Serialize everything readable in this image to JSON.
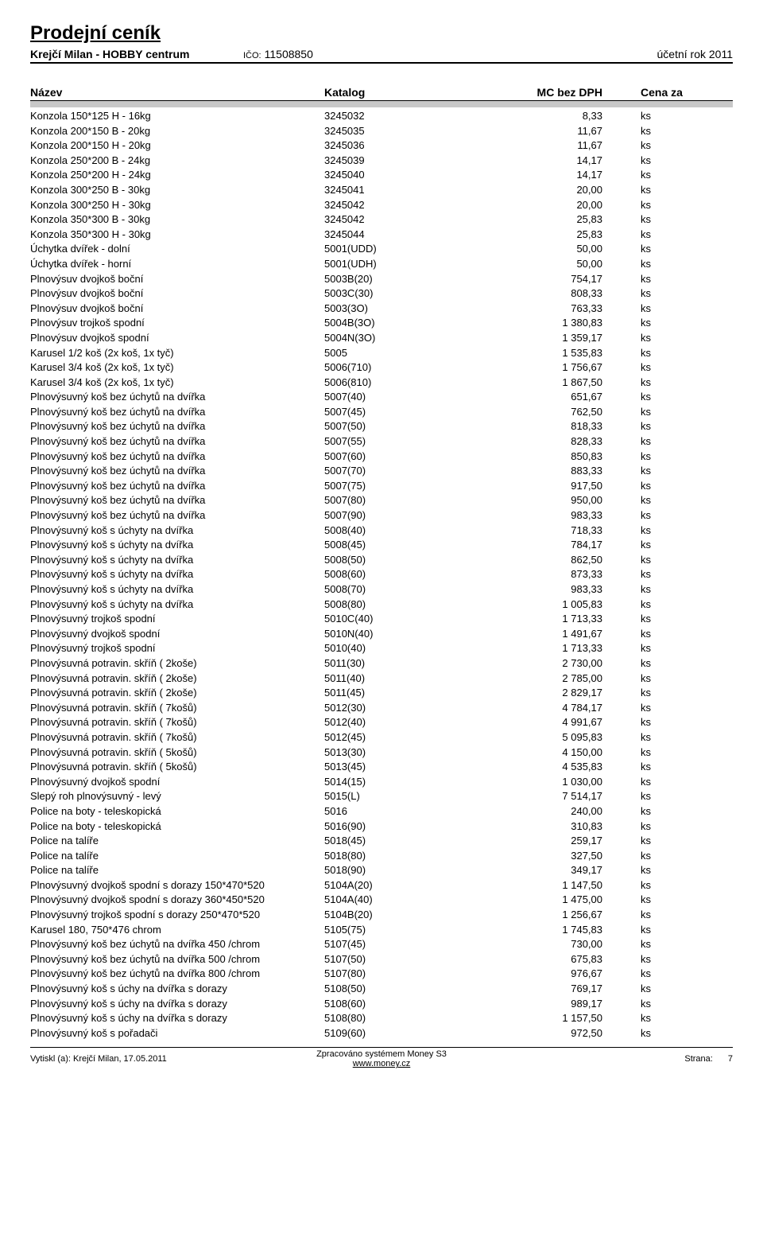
{
  "header": {
    "title": "Prodejní ceník",
    "company": "Krejčí Milan - HOBBY centrum",
    "ico_label": "IČO:",
    "ico": "11508850",
    "year_label": "účetní rok 2011"
  },
  "columns": {
    "c1": "Název",
    "c2": "Katalog",
    "c3": "MC bez DPH",
    "c4": "Cena za"
  },
  "rows": [
    {
      "n": "Konzola 150*125 H - 16kg",
      "k": "3245032",
      "p": "8,33",
      "u": "ks"
    },
    {
      "n": "Konzola 200*150 B - 20kg",
      "k": "3245035",
      "p": "11,67",
      "u": "ks"
    },
    {
      "n": "Konzola 200*150 H - 20kg",
      "k": "3245036",
      "p": "11,67",
      "u": "ks"
    },
    {
      "n": "Konzola 250*200 B - 24kg",
      "k": "3245039",
      "p": "14,17",
      "u": "ks"
    },
    {
      "n": "Konzola 250*200 H - 24kg",
      "k": "3245040",
      "p": "14,17",
      "u": "ks"
    },
    {
      "n": "Konzola 300*250 B - 30kg",
      "k": "3245041",
      "p": "20,00",
      "u": "ks"
    },
    {
      "n": "Konzola 300*250 H - 30kg",
      "k": "3245042",
      "p": "20,00",
      "u": "ks"
    },
    {
      "n": "Konzola 350*300 B - 30kg",
      "k": "3245042",
      "p": "25,83",
      "u": "ks"
    },
    {
      "n": "Konzola 350*300 H - 30kg",
      "k": "3245044",
      "p": "25,83",
      "u": "ks"
    },
    {
      "n": "Úchytka dvířek - dolní",
      "k": "5001(UDD)",
      "p": "50,00",
      "u": "ks"
    },
    {
      "n": "Úchytka dvířek - horní",
      "k": "5001(UDH)",
      "p": "50,00",
      "u": "ks"
    },
    {
      "n": "Plnovýsuv dvojkoš boční",
      "k": "5003B(20)",
      "p": "754,17",
      "u": "ks"
    },
    {
      "n": "Plnovýsuv dvojkoš boční",
      "k": "5003C(30)",
      "p": "808,33",
      "u": "ks"
    },
    {
      "n": "Plnovýsuv dvojkoš boční",
      "k": "5003(3O)",
      "p": "763,33",
      "u": "ks"
    },
    {
      "n": "Plnovýsuv trojkoš spodní",
      "k": "5004B(3O)",
      "p": "1 380,83",
      "u": "ks"
    },
    {
      "n": "Plnovýsuv dvojkoš spodní",
      "k": "5004N(3O)",
      "p": "1 359,17",
      "u": "ks"
    },
    {
      "n": "Karusel 1/2 koš (2x koš, 1x tyč)",
      "k": "5005",
      "p": "1 535,83",
      "u": "ks"
    },
    {
      "n": "Karusel 3/4 koš (2x koš, 1x tyč)",
      "k": "5006(710)",
      "p": "1 756,67",
      "u": "ks"
    },
    {
      "n": "Karusel 3/4 koš (2x koš, 1x tyč)",
      "k": "5006(810)",
      "p": "1 867,50",
      "u": "ks"
    },
    {
      "n": "Plnovýsuvný koš bez úchytů na dvířka",
      "k": "5007(40)",
      "p": "651,67",
      "u": "ks"
    },
    {
      "n": "Plnovýsuvný koš bez úchytů na dvířka",
      "k": "5007(45)",
      "p": "762,50",
      "u": "ks"
    },
    {
      "n": "Plnovýsuvný koš bez úchytů na dvířka",
      "k": "5007(50)",
      "p": "818,33",
      "u": "ks"
    },
    {
      "n": "Plnovýsuvný koš bez úchytů na dvířka",
      "k": "5007(55)",
      "p": "828,33",
      "u": "ks"
    },
    {
      "n": "Plnovýsuvný koš bez úchytů na dvířka",
      "k": "5007(60)",
      "p": "850,83",
      "u": "ks"
    },
    {
      "n": "Plnovýsuvný koš bez úchytů na dvířka",
      "k": "5007(70)",
      "p": "883,33",
      "u": "ks"
    },
    {
      "n": "Plnovýsuvný koš bez úchytů na dvířka",
      "k": "5007(75)",
      "p": "917,50",
      "u": "ks"
    },
    {
      "n": "Plnovýsuvný koš bez úchytů na dvířka",
      "k": "5007(80)",
      "p": "950,00",
      "u": "ks"
    },
    {
      "n": "Plnovýsuvný koš bez úchytů na dvířka",
      "k": "5007(90)",
      "p": "983,33",
      "u": "ks"
    },
    {
      "n": "Plnovýsuvný koš s úchyty na dvířka",
      "k": "5008(40)",
      "p": "718,33",
      "u": "ks"
    },
    {
      "n": "Plnovýsuvný koš s úchyty na dvířka",
      "k": "5008(45)",
      "p": "784,17",
      "u": "ks"
    },
    {
      "n": "Plnovýsuvný koš s úchyty na dvířka",
      "k": "5008(50)",
      "p": "862,50",
      "u": "ks"
    },
    {
      "n": "Plnovýsuvný koš s úchyty na dvířka",
      "k": "5008(60)",
      "p": "873,33",
      "u": "ks"
    },
    {
      "n": "Plnovýsuvný koš s úchyty na dvířka",
      "k": "5008(70)",
      "p": "983,33",
      "u": "ks"
    },
    {
      "n": "Plnovýsuvný koš s úchyty na dvířka",
      "k": "5008(80)",
      "p": "1 005,83",
      "u": "ks"
    },
    {
      "n": "Plnovýsuvný trojkoš spodní",
      "k": "5010C(40)",
      "p": "1 713,33",
      "u": "ks"
    },
    {
      "n": "Plnovýsuvný dvojkoš spodní",
      "k": "5010N(40)",
      "p": "1 491,67",
      "u": "ks"
    },
    {
      "n": "Plnovýsuvný trojkoš spodní",
      "k": "5010(40)",
      "p": "1 713,33",
      "u": "ks"
    },
    {
      "n": "Plnovýsuvná potravin. skříň ( 2koše)",
      "k": "5011(30)",
      "p": "2 730,00",
      "u": "ks"
    },
    {
      "n": "Plnovýsuvná potravin. skříň ( 2koše)",
      "k": "5011(40)",
      "p": "2 785,00",
      "u": "ks"
    },
    {
      "n": "Plnovýsuvná potravin. skříň ( 2koše)",
      "k": "5011(45)",
      "p": "2 829,17",
      "u": "ks"
    },
    {
      "n": "Plnovýsuvná potravin. skříň ( 7košů)",
      "k": "5012(30)",
      "p": "4 784,17",
      "u": "ks"
    },
    {
      "n": "Plnovýsuvná potravin. skříň ( 7košů)",
      "k": "5012(40)",
      "p": "4 991,67",
      "u": "ks"
    },
    {
      "n": "Plnovýsuvná potravin. skříň ( 7košů)",
      "k": "5012(45)",
      "p": "5 095,83",
      "u": "ks"
    },
    {
      "n": "Plnovýsuvná potravin. skříň ( 5košů)",
      "k": "5013(30)",
      "p": "4 150,00",
      "u": "ks"
    },
    {
      "n": "Plnovýsuvná potravin. skříň ( 5košů)",
      "k": "5013(45)",
      "p": "4 535,83",
      "u": "ks"
    },
    {
      "n": "Plnovýsuvný dvojkoš spodní",
      "k": "5014(15)",
      "p": "1 030,00",
      "u": "ks"
    },
    {
      "n": "Slepý roh plnovýsuvný - levý",
      "k": "5015(L)",
      "p": "7 514,17",
      "u": "ks"
    },
    {
      "n": "Police na boty - teleskopická",
      "k": "5016",
      "p": "240,00",
      "u": "ks"
    },
    {
      "n": "Police na boty - teleskopická",
      "k": "5016(90)",
      "p": "310,83",
      "u": "ks"
    },
    {
      "n": "Police na talíře",
      "k": "5018(45)",
      "p": "259,17",
      "u": "ks"
    },
    {
      "n": "Police na talíře",
      "k": "5018(80)",
      "p": "327,50",
      "u": "ks"
    },
    {
      "n": "Police na talíře",
      "k": "5018(90)",
      "p": "349,17",
      "u": "ks"
    },
    {
      "n": "Plnovýsuvný dvojkoš spodní s dorazy 150*470*520",
      "k": "5104A(20)",
      "p": "1 147,50",
      "u": "ks"
    },
    {
      "n": "Plnovýsuvný dvojkoš spodní s dorazy 360*450*520",
      "k": "5104A(40)",
      "p": "1 475,00",
      "u": "ks"
    },
    {
      "n": "Plnovýsuvný trojkoš spodní s dorazy 250*470*520",
      "k": "5104B(20)",
      "p": "1 256,67",
      "u": "ks"
    },
    {
      "n": "Karusel 180, 750*476 chrom",
      "k": "5105(75)",
      "p": "1 745,83",
      "u": "ks"
    },
    {
      "n": "Plnovýsuvný koš  bez úchytů na dvířka 450 /chrom",
      "k": "5107(45)",
      "p": "730,00",
      "u": "ks"
    },
    {
      "n": "Plnovýsuvný koš  bez úchytů na dvířka 500 /chrom",
      "k": "5107(50)",
      "p": "675,83",
      "u": "ks"
    },
    {
      "n": "Plnovýsuvný koš  bez úchytů na dvířka 800 /chrom",
      "k": "5107(80)",
      "p": "976,67",
      "u": "ks"
    },
    {
      "n": "Plnovýsuvný koš s úchy na dvířka s dorazy",
      "k": "5108(50)",
      "p": "769,17",
      "u": "ks"
    },
    {
      "n": "Plnovýsuvný koš s úchy na dvířka s dorazy",
      "k": "5108(60)",
      "p": "989,17",
      "u": "ks"
    },
    {
      "n": "Plnovýsuvný koš s úchy na dvířka s dorazy",
      "k": "5108(80)",
      "p": "1 157,50",
      "u": "ks"
    },
    {
      "n": "Plnovýsuvný koš s pořadači",
      "k": "5109(60)",
      "p": "972,50",
      "u": "ks"
    }
  ],
  "footer": {
    "printed_by": "Vytiskl (a): Krejčí Milan, 17.05.2011",
    "system_line": "Zpracováno systémem Money S3",
    "link": "www.money.cz",
    "page_label": "Strana:",
    "page_num": "7"
  }
}
